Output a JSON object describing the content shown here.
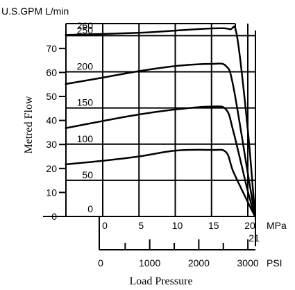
{
  "chart_data": {
    "type": "line",
    "title": "",
    "header_units": "U.S.GPM L/min",
    "ylabel": "Metred Flow",
    "xlabel": "Load Pressure",
    "x_unit_mpa": "MPa",
    "x_unit_psi": "PSI",
    "ylim_lmin": [
      0,
      265
    ],
    "xlim_mpa": [
      -5.2,
      21.3
    ],
    "y_ticks_gpm": [
      "0",
      "10",
      "20",
      "30",
      "40",
      "50",
      "60",
      "70"
    ],
    "y_ticks_lmin": [
      "0",
      "50",
      "100",
      "150",
      "200",
      "250",
      "260"
    ],
    "x_ticks_mpa": [
      "0",
      "5",
      "10",
      "15",
      "20"
    ],
    "x_extra_mpa_label": "21",
    "x_ticks_psi": [
      "0",
      "1000",
      "2000",
      "3000"
    ],
    "series": [
      {
        "x": [
          -5.2,
          5,
          10,
          15,
          17.5,
          18.5,
          20,
          21
        ],
        "y": [
          251,
          254,
          257,
          260,
          259,
          250,
          120,
          0
        ]
      },
      {
        "x": [
          -5.2,
          0,
          5,
          10,
          15,
          17,
          18,
          20,
          21
        ],
        "y": [
          183,
          192,
          201,
          208,
          211,
          208,
          180,
          60,
          0
        ]
      },
      {
        "x": [
          -5.2,
          0,
          5,
          10,
          15,
          17,
          18,
          20,
          21
        ],
        "y": [
          122,
          132,
          141,
          148,
          152,
          148,
          118,
          35,
          0
        ]
      },
      {
        "x": [
          -5.2,
          0,
          5,
          10,
          15,
          17,
          18,
          20,
          21
        ],
        "y": [
          72,
          77,
          83,
          91,
          92,
          89,
          62,
          20,
          0
        ]
      }
    ]
  }
}
